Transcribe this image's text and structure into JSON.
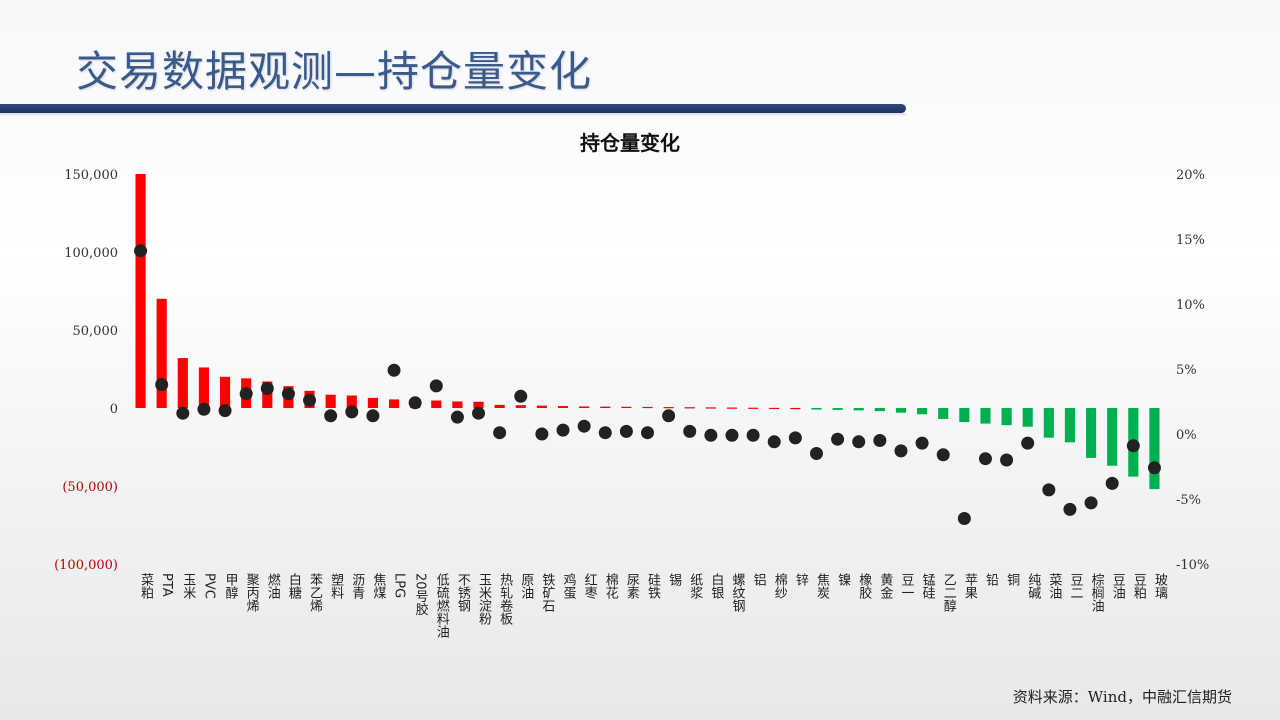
{
  "page": {
    "title": "交易数据观测—持仓量变化",
    "source": "资料来源：Wind，中融汇信期货"
  },
  "colors": {
    "title": "#3a5a8c",
    "bar_positive": "#ff0000",
    "bar_negative": "#00b050",
    "dot": "#222222",
    "negative_tick": "#c00000"
  },
  "chart_data": {
    "type": "bar",
    "title": "持仓量变化",
    "ylim": [
      -100000,
      150000
    ],
    "y2lim": [
      -10,
      20
    ],
    "yticks": [
      "150,000",
      "100,000",
      "50,000",
      "0",
      "(50,000)",
      "(100,000)"
    ],
    "y2ticks": [
      "20%",
      "15%",
      "10%",
      "5%",
      "0%",
      "-5%",
      "-10%"
    ],
    "grid": false,
    "legend": "none",
    "categories": [
      "菜粕",
      "PTA",
      "玉米",
      "PVC",
      "甲醇",
      "聚丙烯",
      "燃油",
      "白糖",
      "苯乙烯",
      "塑料",
      "沥青",
      "焦煤",
      "LPG",
      "20号胶",
      "低硫燃料油",
      "不锈钢",
      "玉米淀粉",
      "热轧卷板",
      "原油",
      "铁矿石",
      "鸡蛋",
      "红枣",
      "棉花",
      "尿素",
      "硅铁",
      "锡",
      "纸浆",
      "白银",
      "螺纹钢",
      "铝",
      "棉纱",
      "锌",
      "焦炭",
      "镍",
      "橡胶",
      "黄金",
      "豆一",
      "锰硅",
      "乙二醇",
      "苹果",
      "铅",
      "铜",
      "纯碱",
      "菜油",
      "豆二",
      "棕榈油",
      "豆油",
      "豆粕",
      "玻璃"
    ],
    "series": [
      {
        "axis": "left",
        "values": [
          150000,
          70000,
          32000,
          26000,
          20000,
          19000,
          17000,
          14000,
          11000,
          8500,
          8000,
          6500,
          5500,
          5200,
          4800,
          4200,
          4000,
          2000,
          1800,
          1500,
          1200,
          1000,
          900,
          800,
          700,
          600,
          500,
          400,
          300,
          200,
          100,
          50,
          -1000,
          -1200,
          -1500,
          -2000,
          -3000,
          -4000,
          -7000,
          -9000,
          -10000,
          -11000,
          -12000,
          -19000,
          -22000,
          -32000,
          -37000,
          -44000,
          -52000
        ]
      },
      {
        "axis": "right",
        "values": [
          14.1,
          3.8,
          1.6,
          1.9,
          1.8,
          3.1,
          3.5,
          3.1,
          2.6,
          1.4,
          1.7,
          1.4,
          4.9,
          2.4,
          3.7,
          1.3,
          1.6,
          0.1,
          2.9,
          0.0,
          0.3,
          0.6,
          0.1,
          0.2,
          0.1,
          1.4,
          0.2,
          -0.1,
          -0.1,
          -0.1,
          -0.6,
          -0.3,
          -1.5,
          -0.4,
          -0.6,
          -0.5,
          -1.3,
          -0.7,
          -1.6,
          -6.5,
          -1.9,
          -2.0,
          -0.7,
          -4.3,
          -5.8,
          -5.3,
          -3.8,
          -0.9,
          -2.6
        ]
      }
    ]
  }
}
